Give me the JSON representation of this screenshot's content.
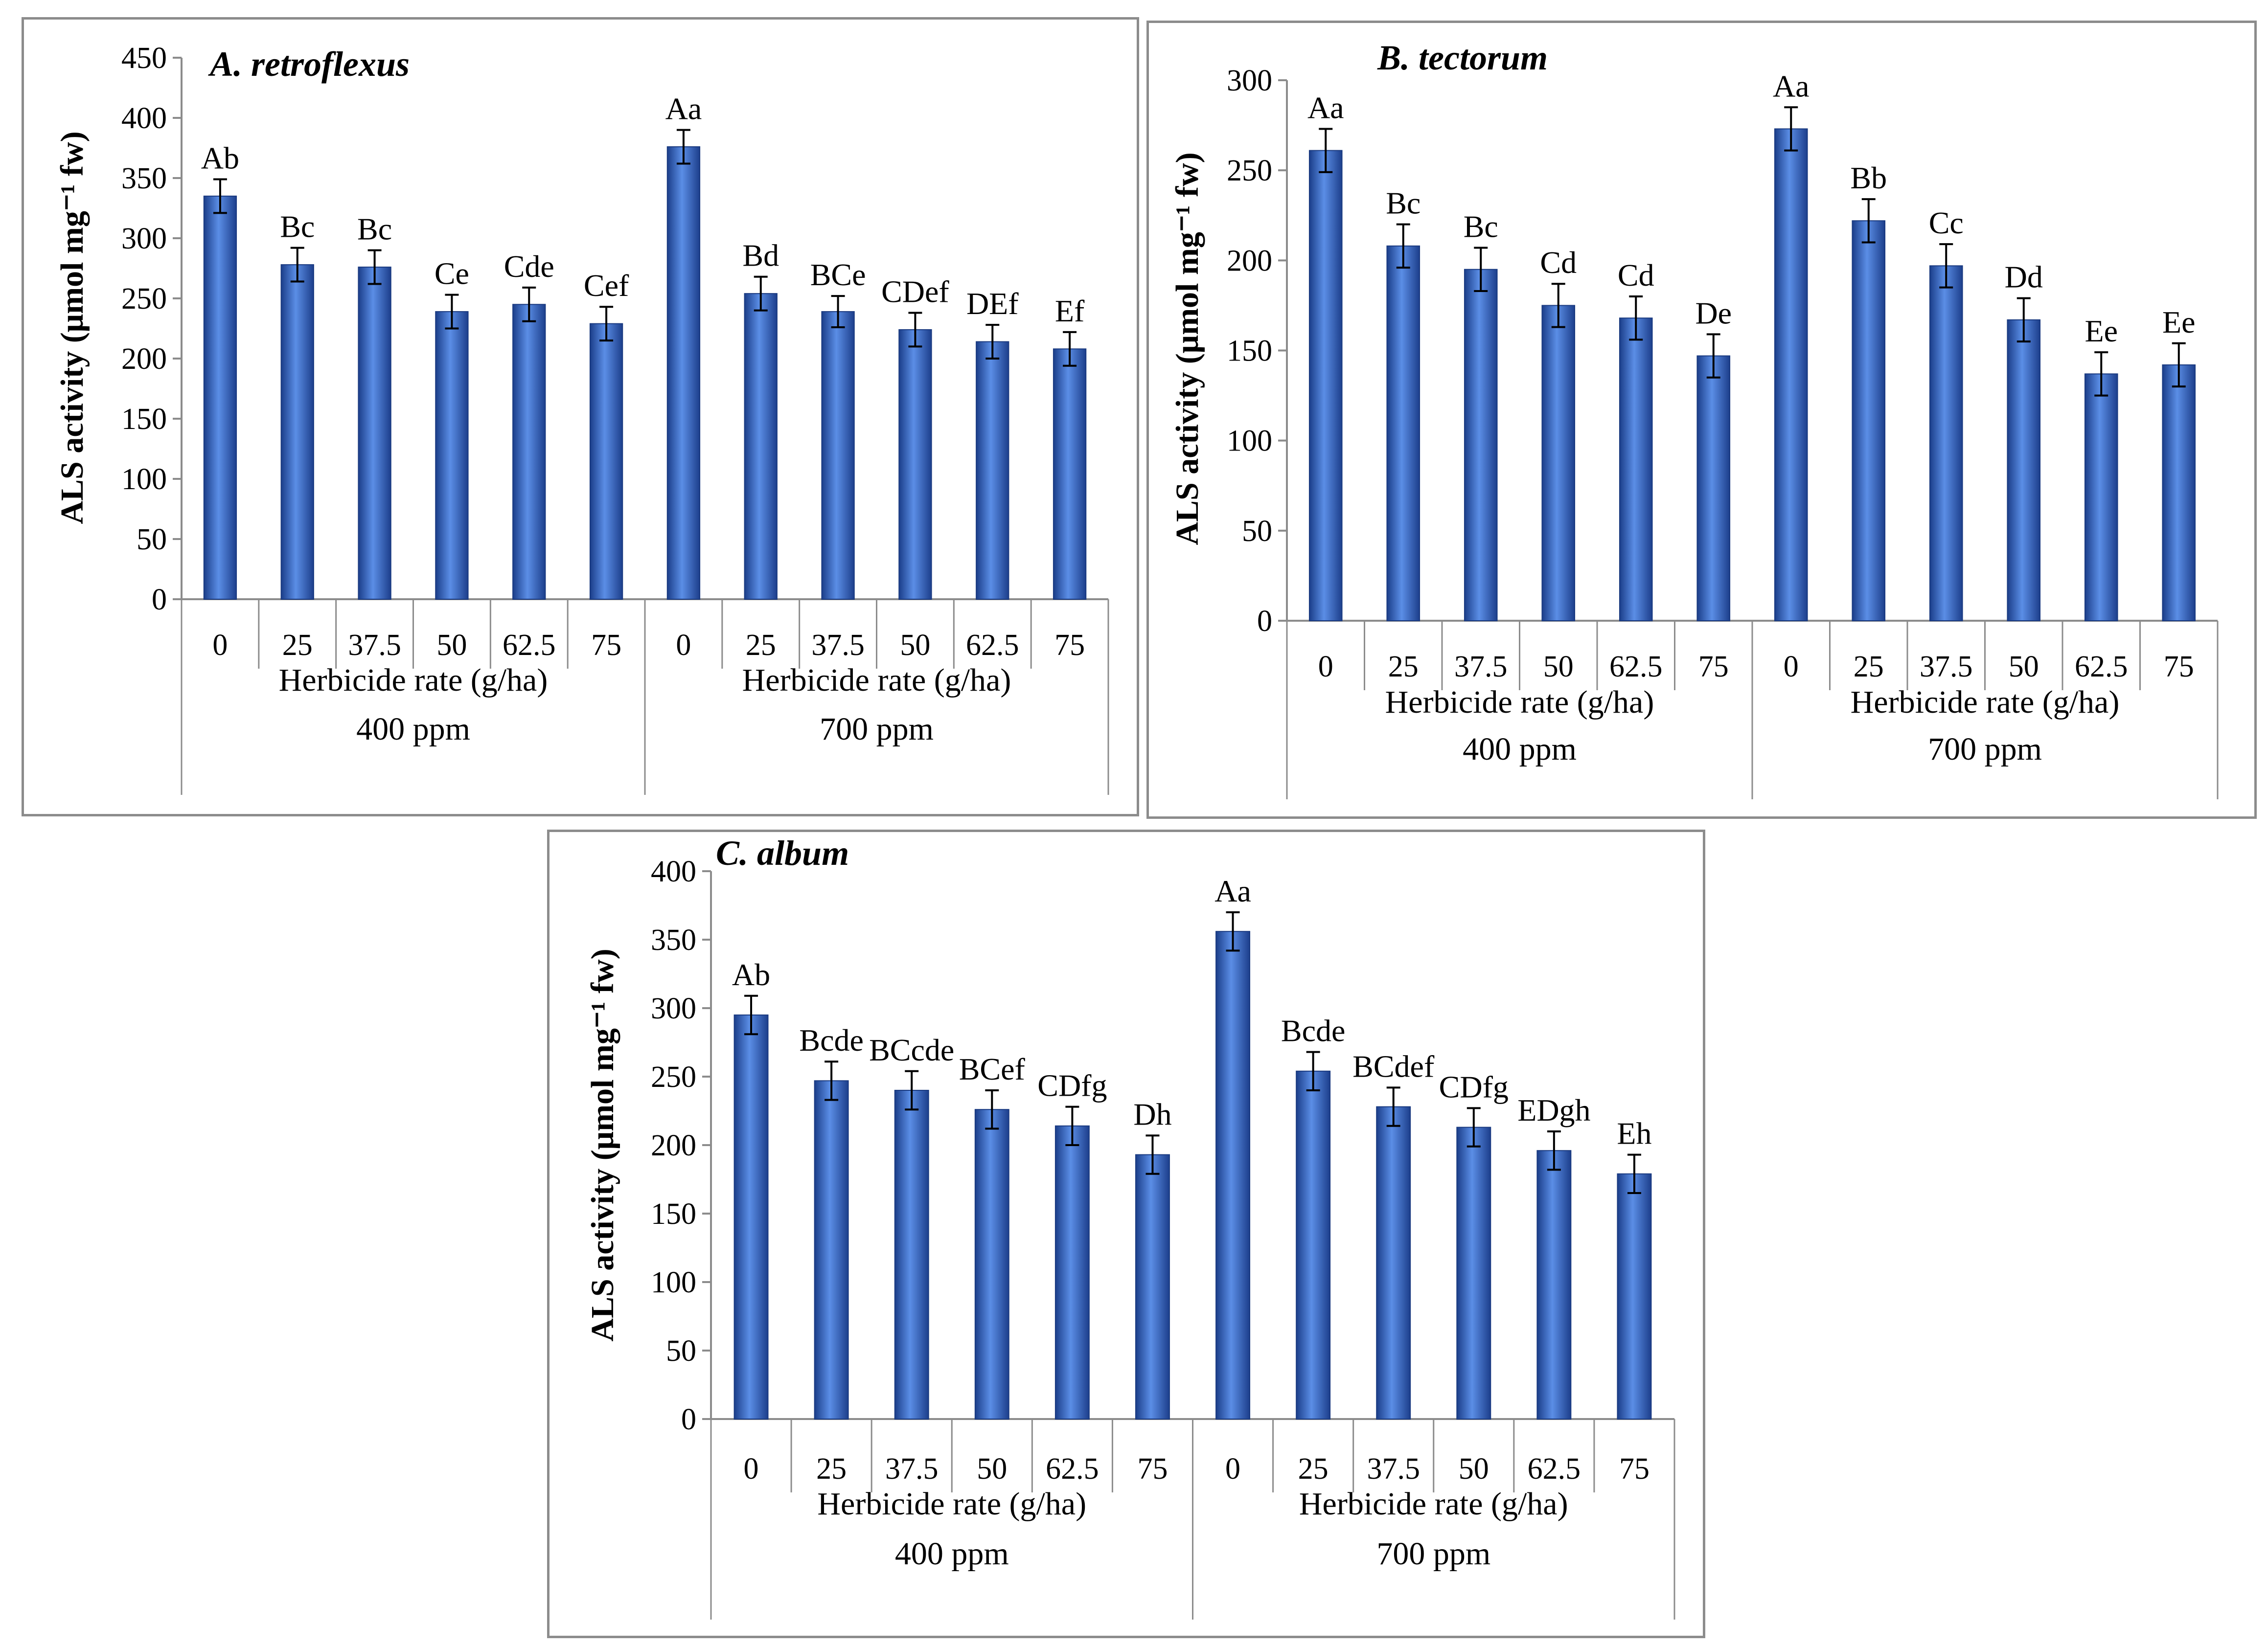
{
  "chart_data": [
    {
      "type": "bar",
      "title": "A. retroflexus",
      "ylabel": "ALS activity (μmol mg⁻¹ fw)",
      "ylim": [
        0,
        450
      ],
      "yticks": [
        0,
        50,
        100,
        150,
        200,
        250,
        300,
        350,
        400,
        450
      ],
      "categories": [
        "0",
        "25",
        "37.5",
        "50",
        "62.5",
        "75",
        "0",
        "25",
        "37.5",
        "50",
        "62.5",
        "75"
      ],
      "group_axis_labels": [
        "Herbicide rate (g/ha)",
        "Herbicide rate (g/ha)"
      ],
      "groups": [
        "400 ppm",
        "700 ppm"
      ],
      "values": [
        335,
        278,
        276,
        239,
        245,
        229,
        376,
        254,
        239,
        224,
        214,
        208
      ],
      "errors": [
        14,
        14,
        14,
        14,
        14,
        14,
        14,
        14,
        13,
        14,
        14,
        14
      ],
      "labels": [
        "Ab",
        "Bc",
        "Bc",
        "Ce",
        "Cde",
        "Cef",
        "Aa",
        "Bd",
        "BCe",
        "CDef",
        "DEf",
        "Ef"
      ],
      "grid": false
    },
    {
      "type": "bar",
      "title": "B. tectorum",
      "ylabel": "ALS activity (μmol mg⁻¹ fw)",
      "ylim": [
        0,
        300
      ],
      "yticks": [
        0,
        50,
        100,
        150,
        200,
        250,
        300
      ],
      "categories": [
        "0",
        "25",
        "37.5",
        "50",
        "62.5",
        "75",
        "0",
        "25",
        "37.5",
        "50",
        "62.5",
        "75"
      ],
      "group_axis_labels": [
        "Herbicide rate (g/ha)",
        "Herbicide rate (g/ha)"
      ],
      "groups": [
        "400 ppm",
        "700 ppm"
      ],
      "values": [
        261,
        208,
        195,
        175,
        168,
        147,
        273,
        222,
        197,
        167,
        137,
        142
      ],
      "errors": [
        12,
        12,
        12,
        12,
        12,
        12,
        12,
        12,
        12,
        12,
        12,
        12
      ],
      "labels": [
        "Aa",
        "Bc",
        "Bc",
        "Cd",
        "Cd",
        "De",
        "Aa",
        "Bb",
        "Cc",
        "Dd",
        "Ee",
        "Ee"
      ],
      "grid": false
    },
    {
      "type": "bar",
      "title": "C. album",
      "ylabel": "ALS activity (μmol mg⁻¹ fw)",
      "ylim": [
        0,
        400
      ],
      "yticks": [
        0,
        50,
        100,
        150,
        200,
        250,
        300,
        350,
        400
      ],
      "categories": [
        "0",
        "25",
        "37.5",
        "50",
        "62.5",
        "75",
        "0",
        "25",
        "37.5",
        "50",
        "62.5",
        "75"
      ],
      "group_axis_labels": [
        "Herbicide rate (g/ha)",
        "Herbicide rate (g/ha)"
      ],
      "groups": [
        "400 ppm",
        "700 ppm"
      ],
      "values": [
        295,
        247,
        240,
        226,
        214,
        193,
        356,
        254,
        228,
        213,
        196,
        179
      ],
      "errors": [
        14,
        14,
        14,
        14,
        14,
        14,
        14,
        14,
        14,
        14,
        14,
        14
      ],
      "labels": [
        "Ab",
        "Bcde",
        "BCcde",
        "BCef",
        "CDfg",
        "Dh",
        "Aa",
        "Bcde",
        "BCdef",
        "CDfg",
        "EDgh",
        "Eh"
      ],
      "grid": false
    }
  ]
}
